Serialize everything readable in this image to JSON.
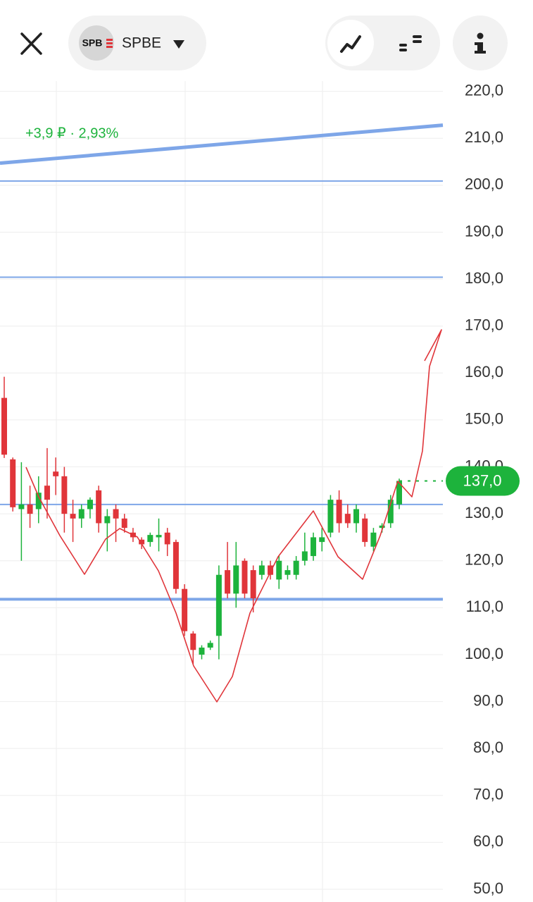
{
  "header": {
    "ticker": "SPBE",
    "logo": "SPB"
  },
  "chart_data": {
    "type": "candlestick",
    "change_label": "+3,9 ₽ · 2,93%",
    "last_price": {
      "value": 137,
      "label": "137,0"
    },
    "ylim": [
      47.3,
      222.2
    ],
    "yticks": [
      {
        "value": 220,
        "label": "220,0"
      },
      {
        "value": 210,
        "label": "210,0"
      },
      {
        "value": 200,
        "label": "200,0"
      },
      {
        "value": 190,
        "label": "190,0"
      },
      {
        "value": 180,
        "label": "180,0"
      },
      {
        "value": 170,
        "label": "170,0"
      },
      {
        "value": 160,
        "label": "160,0"
      },
      {
        "value": 150,
        "label": "150,0"
      },
      {
        "value": 140,
        "label": "140,0"
      },
      {
        "value": 130,
        "label": "130,0"
      },
      {
        "value": 120,
        "label": "120,0"
      },
      {
        "value": 110,
        "label": "110,0"
      },
      {
        "value": 100,
        "label": "100,0"
      },
      {
        "value": 90,
        "label": "90,0"
      },
      {
        "value": 80,
        "label": "80,0"
      },
      {
        "value": 70,
        "label": "70,0"
      },
      {
        "value": 60,
        "label": "60,0"
      },
      {
        "value": 50,
        "label": "50,0"
      }
    ],
    "grid": true,
    "up_color": "#1db33c",
    "down_color": "#e0353a",
    "level_color": "#7ea6e8",
    "levels": [
      200.9,
      180.4,
      132,
      111.8
    ],
    "trend_line": [
      204.7,
      212.8
    ],
    "series": [
      {
        "open": [
          154.7,
          141.6,
          131,
          132,
          131,
          136,
          139,
          138,
          130,
          129,
          131,
          135,
          128,
          131,
          129,
          126,
          124.5,
          124,
          125,
          126,
          124,
          114,
          104.5,
          100,
          101.5,
          104,
          118,
          113,
          120,
          118,
          117,
          119,
          116,
          117,
          117,
          120,
          121,
          124,
          126,
          133,
          130,
          128,
          129,
          123,
          127,
          128,
          132
        ],
        "high": [
          159.2,
          142,
          141,
          136,
          138,
          144,
          142,
          140,
          133,
          132,
          133.5,
          136,
          131,
          132,
          130,
          127,
          125,
          126,
          129,
          127,
          124.5,
          115,
          105,
          102,
          103,
          119,
          124,
          124,
          120.5,
          119,
          120,
          120,
          121,
          119,
          121,
          126,
          126,
          127,
          134,
          135,
          132,
          132,
          130,
          127,
          128,
          134,
          137.5
        ],
        "low": [
          141.9,
          130.5,
          120,
          127,
          128,
          129,
          134,
          126,
          124,
          127,
          129,
          126,
          122,
          124,
          126,
          124,
          122.5,
          123,
          122,
          121,
          113,
          104,
          98,
          99,
          101,
          99,
          112,
          110,
          112,
          109,
          116,
          116,
          114,
          116,
          116,
          119,
          120,
          122,
          125,
          126,
          127,
          126,
          123,
          122,
          126,
          127,
          131
        ],
        "close": [
          142.6,
          131.4,
          132,
          130,
          134.5,
          133,
          138,
          130,
          129,
          131,
          133,
          128,
          129.5,
          129,
          127,
          125,
          123.5,
          125.5,
          125.5,
          123.5,
          114,
          105,
          101,
          101.5,
          102.5,
          117,
          113,
          119,
          113,
          112,
          119,
          117,
          120,
          118,
          120,
          122,
          125,
          125,
          133,
          128,
          128,
          131,
          124,
          126,
          127.5,
          133,
          137
        ]
      }
    ]
  }
}
